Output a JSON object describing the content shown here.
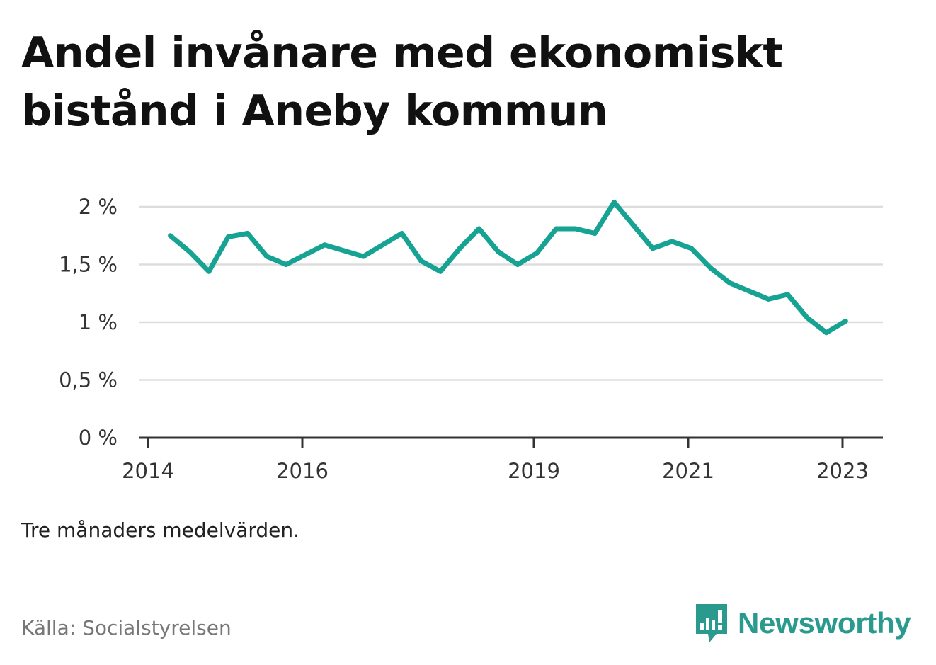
{
  "title": "Andel invånare med ekonomiskt bistånd i Aneby kommun",
  "note": "Tre månaders medelvärden.",
  "source": "Källa: Socialstyrelsen",
  "brand": {
    "name": "Newsworthy",
    "icon": "newsworthy-logo-icon",
    "color": "#2a9a8f"
  },
  "colors": {
    "line": "#16a394",
    "grid": "#dddddd",
    "axis": "#333333"
  },
  "chart_data": {
    "type": "line",
    "title": "Andel invånare med ekonomiskt bistånd i Aneby kommun",
    "xlabel": "",
    "ylabel": "",
    "ylim": [
      0,
      2
    ],
    "xlim": [
      2014.0,
      2023.5
    ],
    "grid": true,
    "legend": "none",
    "y_ticks": [
      {
        "value": 0,
        "label": "0 %"
      },
      {
        "value": 0.5,
        "label": "0,5 %"
      },
      {
        "value": 1,
        "label": "1 %"
      },
      {
        "value": 1.5,
        "label": "1,5 %"
      },
      {
        "value": 2,
        "label": "2 %"
      }
    ],
    "x_ticks": [
      {
        "value": 2014,
        "label": "2014"
      },
      {
        "value": 2016,
        "label": "2016"
      },
      {
        "value": 2019,
        "label": "2019"
      },
      {
        "value": 2021,
        "label": "2021"
      },
      {
        "value": 2023,
        "label": "2023"
      }
    ],
    "series": [
      {
        "color": "#16a394",
        "points": [
          [
            2014.29,
            1.75
          ],
          [
            2014.54,
            1.61
          ],
          [
            2014.79,
            1.44
          ],
          [
            2015.04,
            1.74
          ],
          [
            2015.29,
            1.77
          ],
          [
            2015.54,
            1.57
          ],
          [
            2015.79,
            1.5
          ],
          [
            2016.29,
            1.67
          ],
          [
            2016.79,
            1.57
          ],
          [
            2017.29,
            1.77
          ],
          [
            2017.54,
            1.53
          ],
          [
            2017.79,
            1.44
          ],
          [
            2018.04,
            1.64
          ],
          [
            2018.29,
            1.81
          ],
          [
            2018.54,
            1.61
          ],
          [
            2018.79,
            1.5
          ],
          [
            2019.04,
            1.6
          ],
          [
            2019.29,
            1.81
          ],
          [
            2019.54,
            1.81
          ],
          [
            2019.79,
            1.77
          ],
          [
            2020.04,
            2.04
          ],
          [
            2020.29,
            1.84
          ],
          [
            2020.54,
            1.64
          ],
          [
            2020.79,
            1.7
          ],
          [
            2021.04,
            1.64
          ],
          [
            2021.29,
            1.47
          ],
          [
            2021.54,
            1.34
          ],
          [
            2021.79,
            1.27
          ],
          [
            2022.04,
            1.2
          ],
          [
            2022.29,
            1.24
          ],
          [
            2022.54,
            1.04
          ],
          [
            2022.79,
            0.91
          ],
          [
            2023.04,
            1.01
          ]
        ]
      }
    ]
  }
}
